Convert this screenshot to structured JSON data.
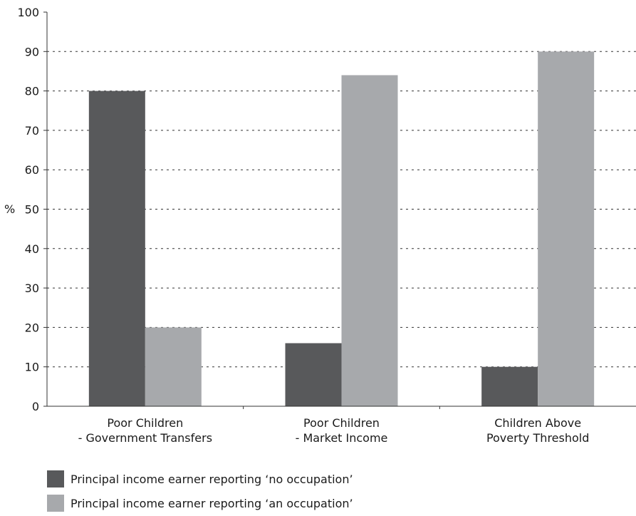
{
  "chart_data": {
    "type": "bar",
    "categories": [
      [
        "Poor Children",
        "- Government Transfers"
      ],
      [
        "Poor Children",
        "- Market Income"
      ],
      [
        "Children Above",
        "Poverty Threshold"
      ]
    ],
    "series": [
      {
        "name": "Principal income earner reporting ‘no occupation’",
        "color": "#58595b",
        "values": [
          80,
          16,
          10
        ]
      },
      {
        "name": "Principal income earner reporting ‘an occupation’",
        "color": "#a7a9ac",
        "values": [
          20,
          84,
          90
        ]
      }
    ],
    "ylabel": "%",
    "ylim": [
      0,
      100
    ],
    "yticks": [
      0,
      10,
      20,
      30,
      40,
      50,
      60,
      70,
      80,
      90,
      100
    ],
    "grid": "dashed-horizontal",
    "legend": "bottom-left"
  }
}
